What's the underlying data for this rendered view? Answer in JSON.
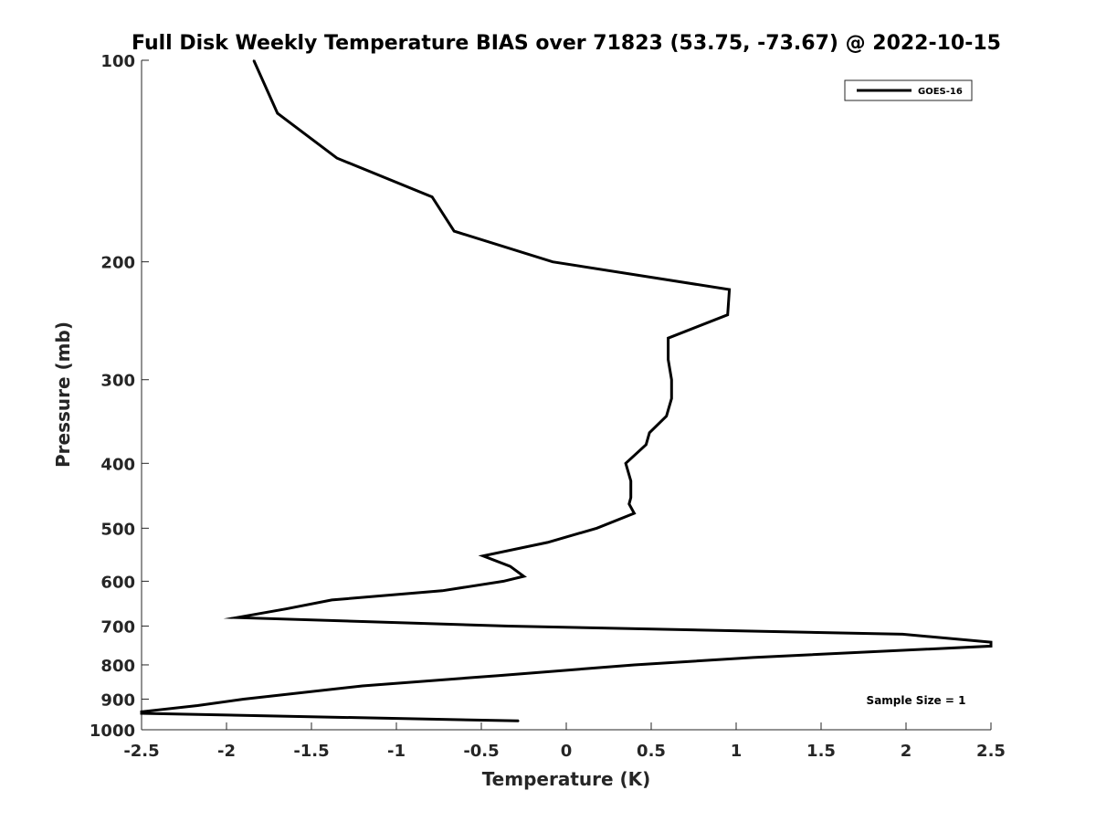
{
  "chart_data": {
    "type": "line",
    "title": "Full Disk Weekly Temperature BIAS over 71823 (53.75, -73.67) @ 2022-10-15",
    "xlabel": "Temperature (K)",
    "ylabel": "Pressure (mb)",
    "xlim": [
      -2.5,
      2.5
    ],
    "ylim": [
      1000,
      100
    ],
    "yscale": "log",
    "x_ticks": [
      -2.5,
      -2,
      -1.5,
      -1,
      -0.5,
      0,
      0.5,
      1,
      1.5,
      2,
      2.5
    ],
    "x_tick_labels": [
      "-2.5",
      "-2",
      "-1.5",
      "-1",
      "-0.5",
      "0",
      "0.5",
      "1",
      "1.5",
      "2",
      "2.5"
    ],
    "y_ticks": [
      100,
      200,
      300,
      400,
      500,
      600,
      700,
      800,
      900,
      1000
    ],
    "y_tick_labels": [
      "100",
      "200",
      "300",
      "400",
      "500",
      "600",
      "700",
      "800",
      "900",
      "1000"
    ],
    "grid": false,
    "legend_position": "top-right",
    "annotation": "Sample Size = 1",
    "series": [
      {
        "name": "GOES-16",
        "color": "#000000",
        "points": [
          {
            "x": -1.84,
            "p": 100
          },
          {
            "x": -1.7,
            "p": 120
          },
          {
            "x": -1.35,
            "p": 140
          },
          {
            "x": -0.79,
            "p": 160
          },
          {
            "x": -0.66,
            "p": 180
          },
          {
            "x": -0.08,
            "p": 200
          },
          {
            "x": 0.96,
            "p": 220
          },
          {
            "x": 0.95,
            "p": 240
          },
          {
            "x": 0.6,
            "p": 260
          },
          {
            "x": 0.6,
            "p": 280
          },
          {
            "x": 0.62,
            "p": 300
          },
          {
            "x": 0.62,
            "p": 320
          },
          {
            "x": 0.59,
            "p": 340
          },
          {
            "x": 0.49,
            "p": 360
          },
          {
            "x": 0.47,
            "p": 375
          },
          {
            "x": 0.35,
            "p": 400
          },
          {
            "x": 0.38,
            "p": 425
          },
          {
            "x": 0.38,
            "p": 450
          },
          {
            "x": 0.37,
            "p": 460
          },
          {
            "x": 0.4,
            "p": 475
          },
          {
            "x": 0.18,
            "p": 500
          },
          {
            "x": -0.11,
            "p": 525
          },
          {
            "x": -0.49,
            "p": 550
          },
          {
            "x": -0.33,
            "p": 570
          },
          {
            "x": -0.25,
            "p": 590
          },
          {
            "x": -0.37,
            "p": 600
          },
          {
            "x": -0.73,
            "p": 620
          },
          {
            "x": -1.38,
            "p": 640
          },
          {
            "x": -1.65,
            "p": 660
          },
          {
            "x": -1.94,
            "p": 680
          },
          {
            "x": -0.34,
            "p": 700
          },
          {
            "x": 1.98,
            "p": 720
          },
          {
            "x": 2.5,
            "p": 740
          },
          {
            "x": 2.5,
            "p": 750
          },
          {
            "x": 1.1,
            "p": 780
          },
          {
            "x": 0.4,
            "p": 800
          },
          {
            "x": -0.4,
            "p": 830
          },
          {
            "x": -1.2,
            "p": 860
          },
          {
            "x": -1.9,
            "p": 900
          },
          {
            "x": -2.17,
            "p": 920
          },
          {
            "x": -2.5,
            "p": 940
          },
          {
            "x": -2.5,
            "p": 945
          },
          {
            "x": -0.28,
            "p": 970
          }
        ]
      }
    ]
  }
}
